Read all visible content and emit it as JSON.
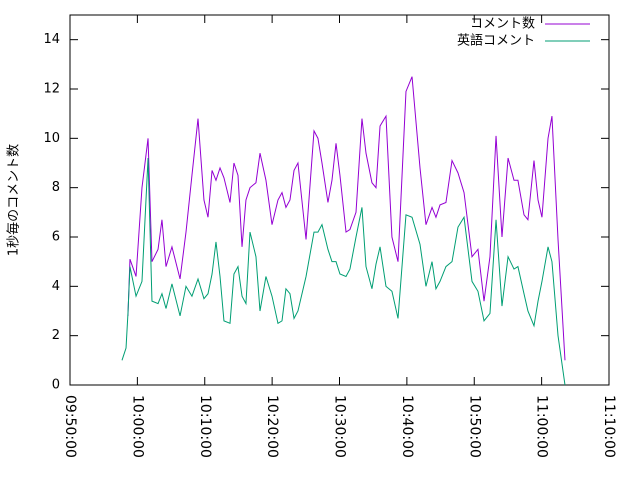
{
  "chart_data": {
    "type": "line",
    "ylabel": "1秒毎のコメント数",
    "x": [
      "09:57:43",
      "09:58:19",
      "09:58:36",
      "09:58:54",
      "09:59:48",
      "10:00:41",
      "10:01:35",
      "10:02:10",
      "10:03:04",
      "10:03:39",
      "10:04:15",
      "10:05:08",
      "10:06:20",
      "10:07:13",
      "10:08:06",
      "10:09:00",
      "10:09:53",
      "10:10:29",
      "10:11:05",
      "10:11:40",
      "10:12:16",
      "10:12:51",
      "10:13:45",
      "10:14:20",
      "10:14:56",
      "10:15:32",
      "10:16:07",
      "10:16:43",
      "10:17:36",
      "10:18:12",
      "10:19:05",
      "10:19:59",
      "10:20:52",
      "10:21:28",
      "10:22:03",
      "10:22:39",
      "10:23:15",
      "10:23:50",
      "10:25:02",
      "10:26:13",
      "10:26:48",
      "10:27:24",
      "10:28:17",
      "10:28:53",
      "10:29:29",
      "10:30:04",
      "10:30:58",
      "10:31:33",
      "10:32:27",
      "10:33:20",
      "10:33:56",
      "10:34:49",
      "10:35:25",
      "10:36:01",
      "10:36:54",
      "10:37:47",
      "10:38:41",
      "10:39:52",
      "10:40:46",
      "10:41:57",
      "10:42:50",
      "10:43:44",
      "10:44:19",
      "10:44:55",
      "10:45:48",
      "10:46:42",
      "10:47:35",
      "10:48:29",
      "10:49:40",
      "10:50:33",
      "10:51:27",
      "10:52:20",
      "10:53:14",
      "10:54:07",
      "10:55:01",
      "10:55:54",
      "10:56:29",
      "10:57:23",
      "10:57:58",
      "10:58:52",
      "10:59:28",
      "11:00:03",
      "11:00:57",
      "11:01:32",
      "11:02:26",
      "11:03:28"
    ],
    "series": [
      {
        "name": "コメント数",
        "color": "#9400d3",
        "values": [
          null,
          null,
          2.8,
          5.1,
          4.4,
          8,
          10,
          5,
          5.5,
          6.7,
          4.8,
          5.6,
          4.3,
          6.2,
          8.5,
          10.8,
          7.5,
          6.8,
          8.7,
          8.3,
          8.8,
          8.4,
          7.4,
          9,
          8.5,
          5.6,
          7.5,
          8,
          8.2,
          9.4,
          8.3,
          6.5,
          7.5,
          7.8,
          7.2,
          7.5,
          8.7,
          9,
          5.9,
          10.3,
          10,
          9,
          7.4,
          8.3,
          9.8,
          8.5,
          6.2,
          6.3,
          7,
          10.8,
          9.4,
          8.2,
          8,
          10.5,
          10.9,
          6,
          5,
          11.9,
          12.5,
          8.8,
          6.5,
          7.2,
          6.8,
          7.3,
          7.4,
          9.1,
          8.6,
          7.8,
          5.2,
          5.5,
          3.4,
          5.2,
          10.1,
          6,
          9.2,
          8.3,
          8.3,
          6.9,
          6.7,
          9.1,
          7.5,
          6.8,
          10,
          10.9,
          5.9,
          1.0
        ]
      },
      {
        "name": "英語コメント",
        "color": "#009e73",
        "values": [
          1.0,
          1.5,
          2.9,
          4.8,
          3.6,
          4.2,
          9.2,
          3.4,
          3.3,
          3.7,
          3.1,
          4.1,
          2.8,
          4.0,
          3.6,
          4.3,
          3.5,
          3.7,
          4.5,
          5.8,
          4.4,
          2.6,
          2.5,
          4.5,
          4.8,
          3.6,
          3.3,
          6.2,
          5.2,
          3.0,
          4.4,
          3.6,
          2.5,
          2.6,
          3.9,
          3.7,
          2.7,
          3.0,
          4.4,
          6.2,
          6.2,
          6.5,
          5.5,
          5.0,
          5.0,
          4.5,
          4.4,
          4.7,
          6.0,
          7.2,
          4.8,
          3.9,
          4.9,
          5.6,
          4.0,
          3.8,
          2.7,
          6.9,
          6.8,
          5.7,
          4.0,
          5.0,
          3.9,
          4.2,
          4.8,
          5.0,
          6.4,
          6.8,
          4.2,
          3.8,
          2.6,
          2.9,
          6.7,
          3.2,
          5.2,
          4.7,
          4.8,
          3.7,
          3.0,
          2.4,
          3.4,
          4.2,
          5.6,
          5.0,
          2.0,
          0
        ]
      }
    ],
    "xlim": [
      "09:50:00",
      "11:10:00"
    ],
    "xticks": [
      "09:50:00",
      "10:00:00",
      "10:10:00",
      "10:20:00",
      "10:30:00",
      "10:40:00",
      "10:50:00",
      "11:00:00",
      "11:10:00"
    ],
    "ylim": [
      0,
      15
    ],
    "yticks": [
      0,
      2,
      4,
      6,
      8,
      10,
      12,
      14
    ],
    "grid": false,
    "legend": "top-right"
  }
}
